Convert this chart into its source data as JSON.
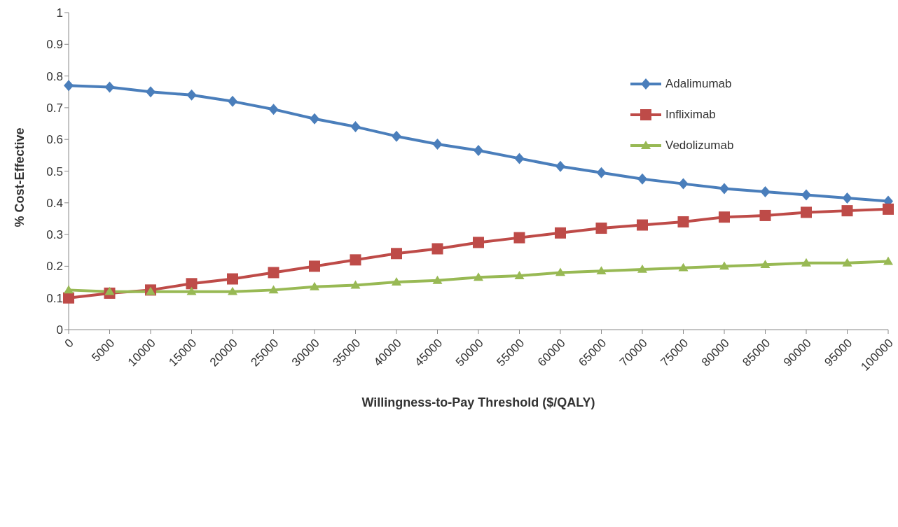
{
  "chart_data": {
    "type": "line",
    "xlabel": "Willingness-to-Pay Threshold ($/QALY)",
    "ylabel": "% Cost-Effective",
    "categories": [
      "0",
      "5000",
      "10000",
      "15000",
      "20000",
      "25000",
      "30000",
      "35000",
      "40000",
      "45000",
      "50000",
      "55000",
      "60000",
      "65000",
      "70000",
      "75000",
      "80000",
      "85000",
      "90000",
      "95000",
      "100000"
    ],
    "series": [
      {
        "name": "Adalimumab",
        "color": "#4a7ebb",
        "marker": "diamond",
        "values": [
          0.77,
          0.765,
          0.75,
          0.74,
          0.72,
          0.695,
          0.665,
          0.64,
          0.61,
          0.585,
          0.565,
          0.54,
          0.515,
          0.495,
          0.475,
          0.46,
          0.445,
          0.435,
          0.425,
          0.415,
          0.405
        ]
      },
      {
        "name": "Infliximab",
        "color": "#be4b48",
        "marker": "square",
        "values": [
          0.1,
          0.115,
          0.125,
          0.145,
          0.16,
          0.18,
          0.2,
          0.22,
          0.24,
          0.255,
          0.275,
          0.29,
          0.305,
          0.32,
          0.33,
          0.34,
          0.355,
          0.36,
          0.37,
          0.375,
          0.38
        ]
      },
      {
        "name": "Vedolizumab",
        "color": "#98b954",
        "marker": "triangle",
        "values": [
          0.125,
          0.12,
          0.12,
          0.12,
          0.12,
          0.125,
          0.135,
          0.14,
          0.15,
          0.155,
          0.165,
          0.17,
          0.18,
          0.185,
          0.19,
          0.195,
          0.2,
          0.205,
          0.21,
          0.21,
          0.215
        ]
      }
    ],
    "ylim": [
      0,
      1
    ],
    "yticks": [
      0,
      0.1,
      0.2,
      0.3,
      0.4,
      0.5,
      0.6,
      0.7,
      0.8,
      0.9,
      1
    ],
    "grid": false,
    "legend": "top right"
  }
}
